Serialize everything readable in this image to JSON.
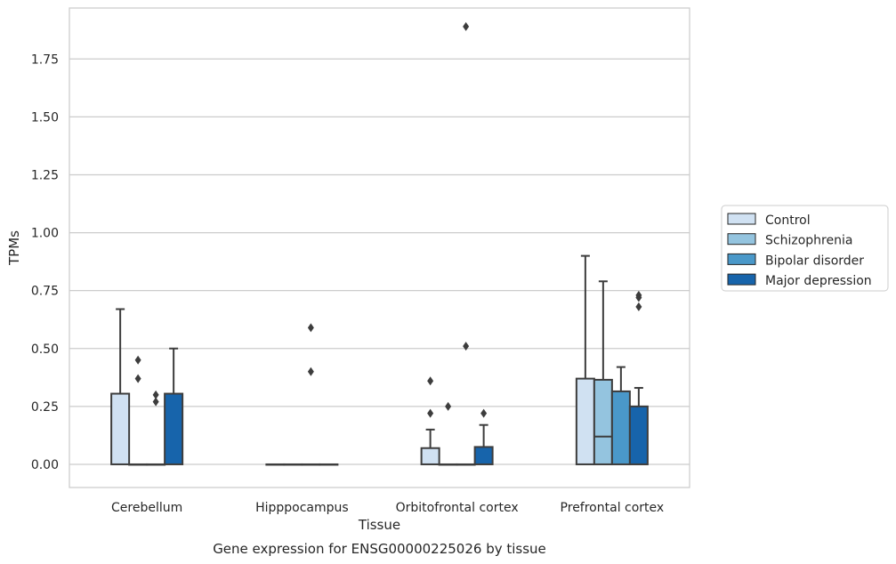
{
  "chart_data": {
    "type": "box",
    "caption": "Gene expression for ENSG00000225026 by tissue",
    "xlabel": "Tissue",
    "ylabel": "TPMs",
    "ylim": [
      -0.1,
      1.97
    ],
    "yticks": [
      0.0,
      0.25,
      0.5,
      0.75,
      1.0,
      1.25,
      1.5,
      1.75
    ],
    "ytick_labels": [
      "0.00",
      "0.25",
      "0.50",
      "0.75",
      "1.00",
      "1.25",
      "1.50",
      "1.75"
    ],
    "grid": "horizontal",
    "legend_position": "right",
    "categories": [
      "Cerebellum",
      "Hipppocampus",
      "Orbitofrontal cortex",
      "Prefrontal cortex"
    ],
    "series": [
      {
        "name": "Control",
        "color": "#d0e1f2",
        "boxes": [
          {
            "q1": 0.0,
            "median": 0.0,
            "q3": 0.305,
            "whisker_low": 0.0,
            "whisker_high": 0.67,
            "outliers": []
          },
          {
            "q1": 0.0,
            "median": 0.0,
            "q3": 0.0,
            "whisker_low": 0.0,
            "whisker_high": 0.0,
            "outliers": []
          },
          {
            "q1": 0.0,
            "median": 0.0,
            "q3": 0.07,
            "whisker_low": 0.0,
            "whisker_high": 0.15,
            "outliers": [
              0.36,
              0.22
            ]
          },
          {
            "q1": 0.0,
            "median": 0.0,
            "q3": 0.37,
            "whisker_low": 0.0,
            "whisker_high": 0.9,
            "outliers": []
          }
        ]
      },
      {
        "name": "Schizophrenia",
        "color": "#94c4df",
        "boxes": [
          {
            "q1": 0.0,
            "median": 0.0,
            "q3": 0.0,
            "whisker_low": 0.0,
            "whisker_high": 0.0,
            "outliers": [
              0.45,
              0.37
            ]
          },
          {
            "q1": 0.0,
            "median": 0.0,
            "q3": 0.0,
            "whisker_low": 0.0,
            "whisker_high": 0.0,
            "outliers": []
          },
          {
            "q1": 0.0,
            "median": 0.0,
            "q3": 0.0,
            "whisker_low": 0.0,
            "whisker_high": 0.0,
            "outliers": [
              0.25
            ]
          },
          {
            "q1": 0.0,
            "median": 0.12,
            "q3": 0.365,
            "whisker_low": 0.0,
            "whisker_high": 0.79,
            "outliers": []
          }
        ]
      },
      {
        "name": "Bipolar disorder",
        "color": "#4a98c9",
        "boxes": [
          {
            "q1": 0.0,
            "median": 0.0,
            "q3": 0.0,
            "whisker_low": 0.0,
            "whisker_high": 0.0,
            "outliers": [
              0.3,
              0.27
            ]
          },
          {
            "q1": 0.0,
            "median": 0.0,
            "q3": 0.0,
            "whisker_low": 0.0,
            "whisker_high": 0.0,
            "outliers": [
              0.59,
              0.4
            ]
          },
          {
            "q1": 0.0,
            "median": 0.0,
            "q3": 0.0,
            "whisker_low": 0.0,
            "whisker_high": 0.0,
            "outliers": [
              1.89,
              0.51
            ]
          },
          {
            "q1": 0.0,
            "median": 0.0,
            "q3": 0.315,
            "whisker_low": 0.0,
            "whisker_high": 0.42,
            "outliers": []
          }
        ]
      },
      {
        "name": "Major depression",
        "color": "#1764ab",
        "boxes": [
          {
            "q1": 0.0,
            "median": 0.0,
            "q3": 0.305,
            "whisker_low": 0.0,
            "whisker_high": 0.5,
            "outliers": []
          },
          {
            "q1": 0.0,
            "median": 0.0,
            "q3": 0.0,
            "whisker_low": 0.0,
            "whisker_high": 0.0,
            "outliers": []
          },
          {
            "q1": 0.0,
            "median": 0.0,
            "q3": 0.075,
            "whisker_low": 0.0,
            "whisker_high": 0.17,
            "outliers": [
              0.22
            ]
          },
          {
            "q1": 0.0,
            "median": 0.0,
            "q3": 0.25,
            "whisker_low": 0.0,
            "whisker_high": 0.33,
            "outliers": [
              0.73,
              0.72,
              0.68
            ]
          }
        ]
      }
    ]
  }
}
